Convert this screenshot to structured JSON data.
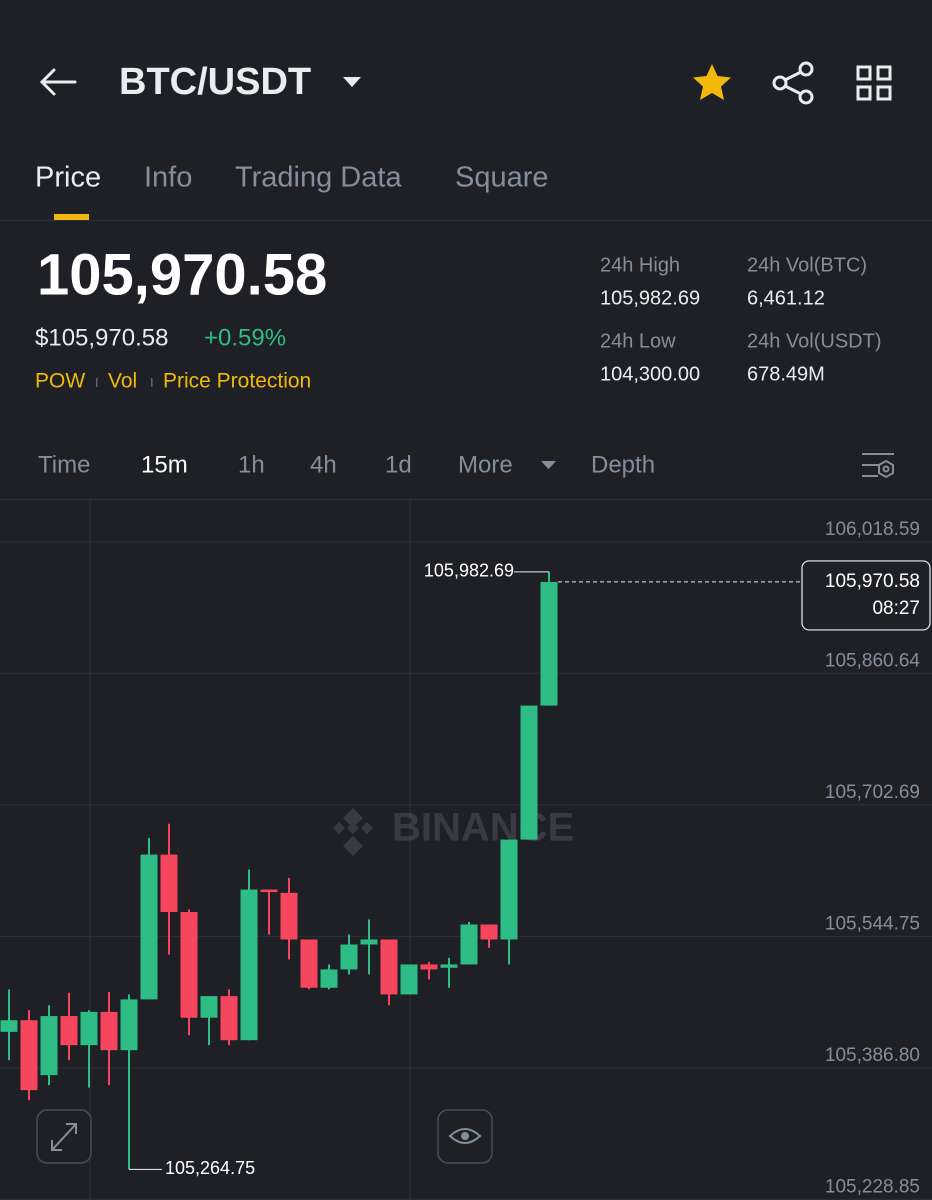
{
  "header": {
    "title": "BTC/USDT"
  },
  "tabs": [
    "Price",
    "Info",
    "Trading Data",
    "Square"
  ],
  "price": {
    "last": "105,970.58",
    "usd": "$105,970.58",
    "change": "+0.59%"
  },
  "tags": [
    "POW",
    "Vol",
    "Price Protection"
  ],
  "stats": [
    {
      "label": "24h High",
      "value": "105,982.69"
    },
    {
      "label": "24h Vol(BTC)",
      "value": "6,461.12"
    },
    {
      "label": "24h Low",
      "value": "104,300.00"
    },
    {
      "label": "24h Vol(USDT)",
      "value": "678.49M"
    }
  ],
  "intervals": [
    "Time",
    "15m",
    "1h",
    "4h",
    "1d",
    "More",
    "Depth"
  ],
  "chart_data": {
    "type": "candlestick",
    "watermark": "BINANCE",
    "open": [
      105430,
      105444,
      105378,
      105449,
      105414,
      105454,
      105408,
      105469,
      105643,
      105574,
      105447,
      105473,
      105420,
      105601,
      105597,
      105541,
      105483,
      105505,
      105535,
      105541,
      105475,
      105511,
      105507,
      105511,
      105559,
      105541,
      105661,
      105822
    ],
    "high": [
      105481,
      105456,
      105462,
      105477,
      105456,
      105478,
      105475,
      105663,
      105680,
      105577,
      105473,
      105481,
      105625,
      105601,
      105615,
      105541,
      105511,
      105547,
      105565,
      105541,
      105511,
      105514,
      105519,
      105562,
      105559,
      105661,
      105822,
      105982.69
    ],
    "low": [
      105396,
      105348,
      105366,
      105396,
      105363,
      105366,
      105264.75,
      105469,
      105523,
      105426,
      105414,
      105414,
      105420,
      105547,
      105517,
      105481,
      105481,
      105499,
      105499,
      105462,
      105475,
      105493,
      105483,
      105511,
      105531,
      105511,
      105661,
      105822
    ],
    "close": [
      105444,
      105360,
      105449,
      105414,
      105454,
      105408,
      105469,
      105643,
      105574,
      105447,
      105473,
      105420,
      105601,
      105598,
      105541,
      105483,
      105505,
      105535,
      105541,
      105475,
      105511,
      105505,
      105511,
      105559,
      105541,
      105661,
      105822,
      105970.58
    ],
    "up_color": "#2ebd85",
    "down_color": "#f6465d",
    "ylim": [
      105228,
      106069
    ],
    "yticks": [
      {
        "value": 106018.59,
        "label": "106,018.59"
      },
      {
        "value": 105860.64,
        "label": "105,860.64"
      },
      {
        "value": 105702.69,
        "label": "105,702.69"
      },
      {
        "value": 105544.75,
        "label": "105,544.75"
      },
      {
        "value": 105386.8,
        "label": "105,386.80"
      },
      {
        "value": 105228.85,
        "label": "105,228.85"
      }
    ],
    "annotations": [
      {
        "value": 105982.69,
        "label": "105,982.69"
      },
      {
        "value": 105264.75,
        "label": "105,264.75"
      }
    ],
    "last_price": {
      "value": 105970.58,
      "label": "105,970.58",
      "time": "08:27"
    }
  }
}
